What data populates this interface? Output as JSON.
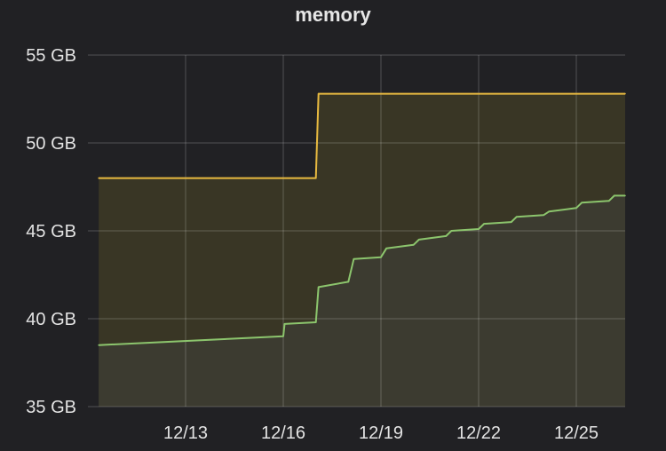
{
  "panel": {
    "title": "memory"
  },
  "chart_data": {
    "type": "area",
    "title": "memory",
    "xlabel": "",
    "ylabel": "",
    "grid": true,
    "legend": "none",
    "y_unit": "GB",
    "ylim": [
      35,
      55
    ],
    "y_ticks": [
      35,
      40,
      45,
      50,
      55
    ],
    "y_tick_labels": [
      "35 GB",
      "40 GB",
      "45 GB",
      "50 GB",
      "55 GB"
    ],
    "xlim": [
      "12/10",
      "12/26"
    ],
    "x_ticks": [
      "12/13",
      "12/16",
      "12/19",
      "12/22",
      "12/25"
    ],
    "x_tick_labels": [
      "12/13",
      "12/16",
      "12/19",
      "12/22",
      "12/25"
    ],
    "series": [
      {
        "color": "#e7b940",
        "fill": "#3b3826",
        "x": [
          "12/10 08:00",
          "12/17 00:00",
          "12/17 02:00",
          "12/26 12:00"
        ],
        "values": [
          48.0,
          48.0,
          52.8,
          52.8
        ]
      },
      {
        "color": "#8cc56d",
        "fill": "#3c3c30",
        "x": [
          "12/10 08:00",
          "12/16 00:00",
          "12/16 01:00",
          "12/17 00:00",
          "12/17 02:00",
          "12/18 00:00",
          "12/18 04:00",
          "12/19 00:00",
          "12/19 04:00",
          "12/20 00:00",
          "12/20 04:00",
          "12/21 00:00",
          "12/21 04:00",
          "12/22 00:00",
          "12/22 04:00",
          "12/23 00:00",
          "12/23 04:00",
          "12/24 00:00",
          "12/24 04:00",
          "12/25 00:00",
          "12/25 04:00",
          "12/26 00:00",
          "12/26 04:00",
          "12/26 12:00"
        ],
        "values": [
          38.5,
          39.0,
          39.7,
          39.8,
          41.8,
          42.1,
          43.4,
          43.5,
          44.0,
          44.2,
          44.5,
          44.7,
          45.0,
          45.1,
          45.4,
          45.5,
          45.8,
          45.9,
          46.1,
          46.3,
          46.6,
          46.7,
          47.0,
          47.0
        ]
      }
    ]
  }
}
